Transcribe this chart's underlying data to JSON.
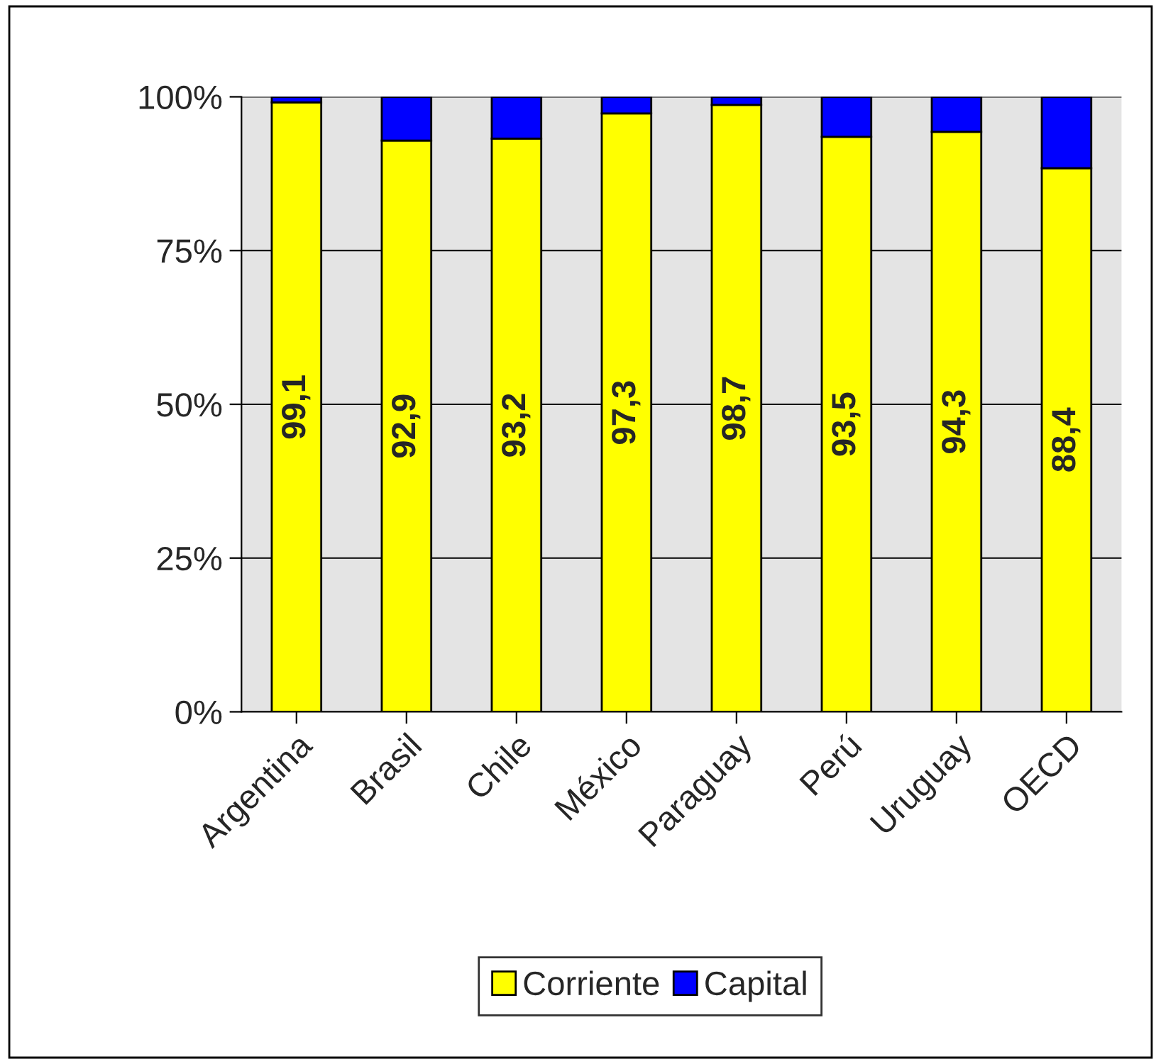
{
  "chart_data": {
    "type": "bar",
    "stacked": true,
    "categories": [
      "Argentina",
      "Brasil",
      "Chile",
      "México",
      "Paraguay",
      "Perú",
      "Uruguay",
      "OECD"
    ],
    "series": [
      {
        "name": "Corriente",
        "color": "#ffff00",
        "values": [
          99.1,
          92.9,
          93.2,
          97.3,
          98.7,
          93.5,
          94.3,
          88.4
        ],
        "value_labels": [
          "99,1",
          "92,9",
          "93,2",
          "97,3",
          "98,7",
          "93,5",
          "94,3",
          "88,4"
        ]
      },
      {
        "name": "Capital",
        "color": "#0000ff",
        "values": [
          0.9,
          7.1,
          6.8,
          2.7,
          1.3,
          6.5,
          5.7,
          11.6
        ]
      }
    ],
    "ylim": [
      0,
      100
    ],
    "yticks": [
      {
        "value": 0,
        "label": "0%"
      },
      {
        "value": 25,
        "label": "25%"
      },
      {
        "value": 50,
        "label": "50%"
      },
      {
        "value": 75,
        "label": "75%"
      },
      {
        "value": 100,
        "label": "100%"
      }
    ],
    "grid": "y",
    "legend": "bottom"
  }
}
